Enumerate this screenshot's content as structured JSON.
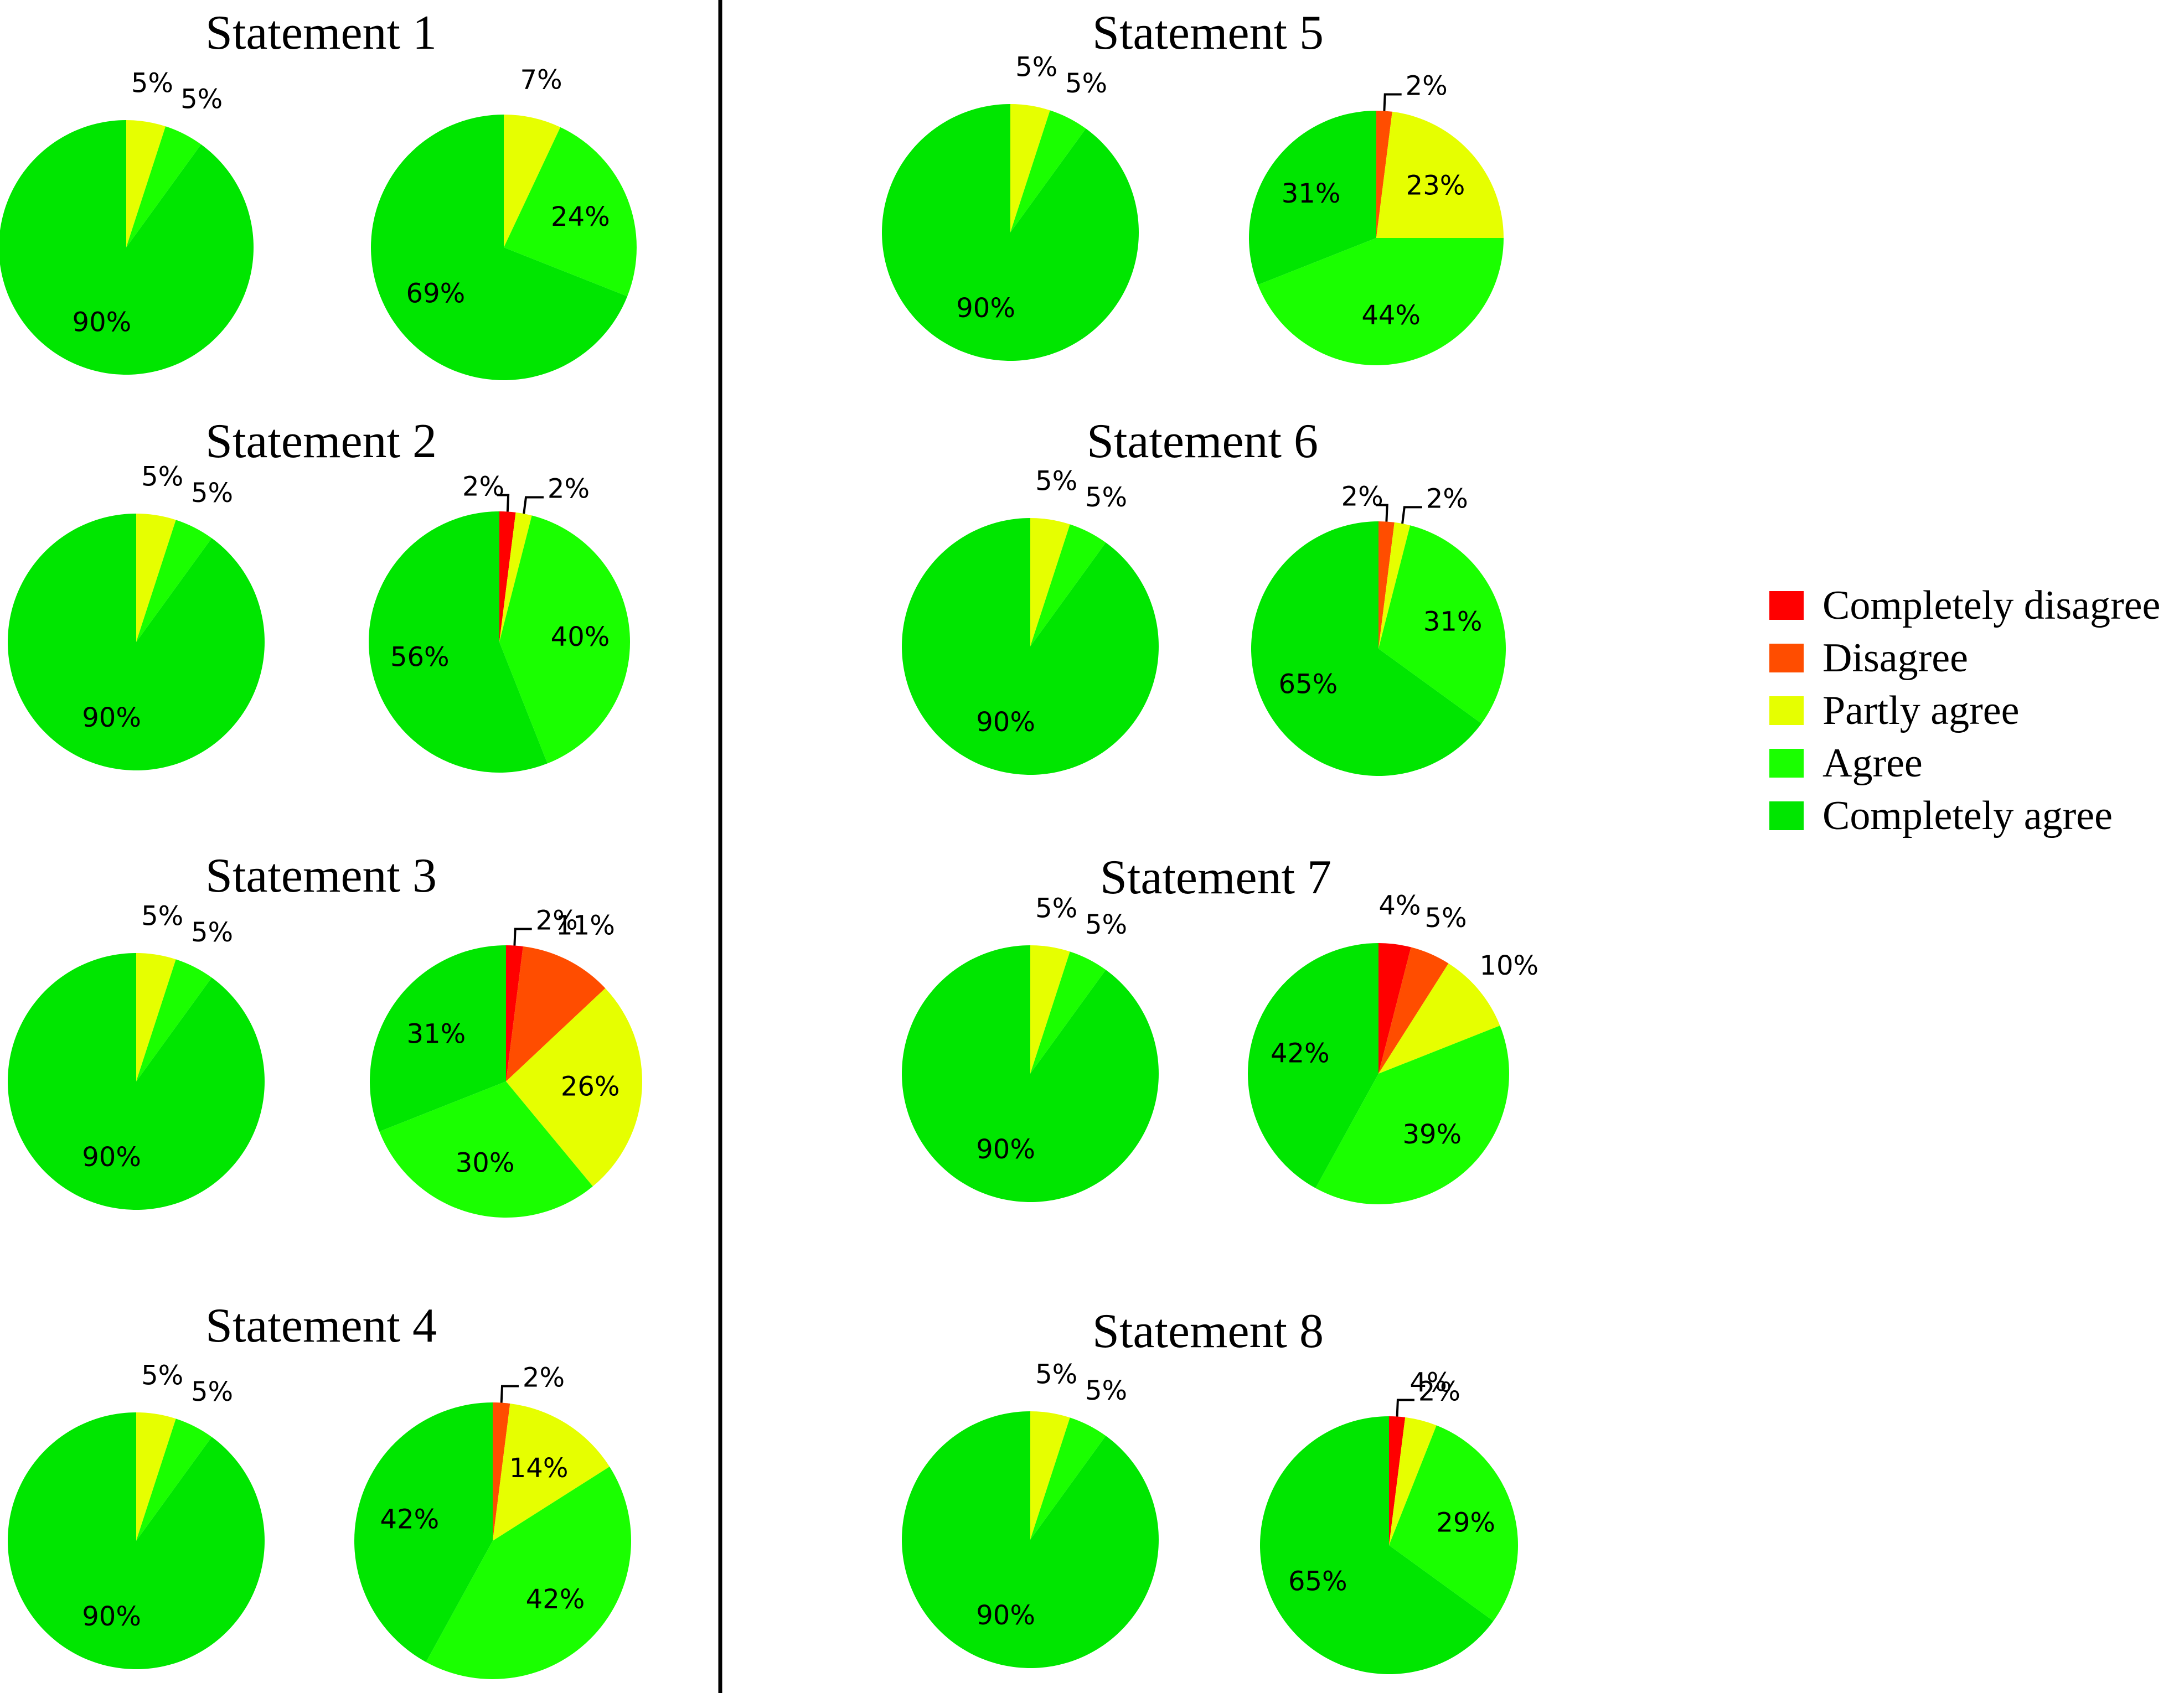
{
  "colors": {
    "Completely disagree": "#ff0000",
    "Disagree": "#ff4d00",
    "Partly agree": "#e6ff00",
    "Agree": "#1aff00",
    "Completely agree": "#00e600"
  },
  "legend": [
    "Completely disagree",
    "Disagree",
    "Partly agree",
    "Agree",
    "Completely agree"
  ],
  "chart_data": [
    {
      "type": "pie",
      "title": "Statement 1",
      "pies": [
        {
          "slices": [
            {
              "category": "Partly agree",
              "value": 5
            },
            {
              "category": "Agree",
              "value": 5
            },
            {
              "category": "Completely agree",
              "value": 90
            }
          ]
        },
        {
          "slices": [
            {
              "category": "Partly agree",
              "value": 7
            },
            {
              "category": "Agree",
              "value": 24
            },
            {
              "category": "Completely agree",
              "value": 69
            }
          ]
        }
      ]
    },
    {
      "type": "pie",
      "title": "Statement 2",
      "pies": [
        {
          "slices": [
            {
              "category": "Partly agree",
              "value": 5
            },
            {
              "category": "Agree",
              "value": 5
            },
            {
              "category": "Completely agree",
              "value": 90
            }
          ]
        },
        {
          "slices": [
            {
              "category": "Completely disagree",
              "value": 2
            },
            {
              "category": "Partly agree",
              "value": 2
            },
            {
              "category": "Agree",
              "value": 40
            },
            {
              "category": "Completely agree",
              "value": 56
            }
          ]
        }
      ]
    },
    {
      "type": "pie",
      "title": "Statement 3",
      "pies": [
        {
          "slices": [
            {
              "category": "Partly agree",
              "value": 5
            },
            {
              "category": "Agree",
              "value": 5
            },
            {
              "category": "Completely agree",
              "value": 90
            }
          ]
        },
        {
          "slices": [
            {
              "category": "Completely disagree",
              "value": 2
            },
            {
              "category": "Disagree",
              "value": 11
            },
            {
              "category": "Partly agree",
              "value": 26
            },
            {
              "category": "Agree",
              "value": 30
            },
            {
              "category": "Completely agree",
              "value": 31
            }
          ]
        }
      ]
    },
    {
      "type": "pie",
      "title": "Statement 4",
      "pies": [
        {
          "slices": [
            {
              "category": "Partly agree",
              "value": 5
            },
            {
              "category": "Agree",
              "value": 5
            },
            {
              "category": "Completely agree",
              "value": 90
            }
          ]
        },
        {
          "slices": [
            {
              "category": "Disagree",
              "value": 2
            },
            {
              "category": "Partly agree",
              "value": 14
            },
            {
              "category": "Agree",
              "value": 42
            },
            {
              "category": "Completely agree",
              "value": 42
            }
          ]
        }
      ]
    },
    {
      "type": "pie",
      "title": "Statement 5",
      "pies": [
        {
          "slices": [
            {
              "category": "Partly agree",
              "value": 5
            },
            {
              "category": "Agree",
              "value": 5
            },
            {
              "category": "Completely agree",
              "value": 90
            }
          ]
        },
        {
          "slices": [
            {
              "category": "Disagree",
              "value": 2
            },
            {
              "category": "Partly agree",
              "value": 23
            },
            {
              "category": "Agree",
              "value": 44
            },
            {
              "category": "Completely agree",
              "value": 31
            }
          ]
        }
      ]
    },
    {
      "type": "pie",
      "title": "Statement 6",
      "pies": [
        {
          "slices": [
            {
              "category": "Partly agree",
              "value": 5
            },
            {
              "category": "Agree",
              "value": 5
            },
            {
              "category": "Completely agree",
              "value": 90
            }
          ]
        },
        {
          "slices": [
            {
              "category": "Disagree",
              "value": 2
            },
            {
              "category": "Partly agree",
              "value": 2
            },
            {
              "category": "Agree",
              "value": 31
            },
            {
              "category": "Completely agree",
              "value": 65
            }
          ]
        }
      ]
    },
    {
      "type": "pie",
      "title": "Statement 7",
      "pies": [
        {
          "slices": [
            {
              "category": "Partly agree",
              "value": 5
            },
            {
              "category": "Agree",
              "value": 5
            },
            {
              "category": "Completely agree",
              "value": 90
            }
          ]
        },
        {
          "slices": [
            {
              "category": "Completely disagree",
              "value": 4
            },
            {
              "category": "Disagree",
              "value": 5
            },
            {
              "category": "Partly agree",
              "value": 10
            },
            {
              "category": "Agree",
              "value": 39
            },
            {
              "category": "Completely agree",
              "value": 42
            }
          ]
        }
      ]
    },
    {
      "type": "pie",
      "title": "Statement 8",
      "pies": [
        {
          "slices": [
            {
              "category": "Partly agree",
              "value": 5
            },
            {
              "category": "Agree",
              "value": 5
            },
            {
              "category": "Completely agree",
              "value": 90
            }
          ]
        },
        {
          "slices": [
            {
              "category": "Completely disagree",
              "value": 2
            },
            {
              "category": "Partly agree",
              "value": 4
            },
            {
              "category": "Agree",
              "value": 29
            },
            {
              "category": "Completely agree",
              "value": 65
            }
          ]
        }
      ]
    }
  ]
}
